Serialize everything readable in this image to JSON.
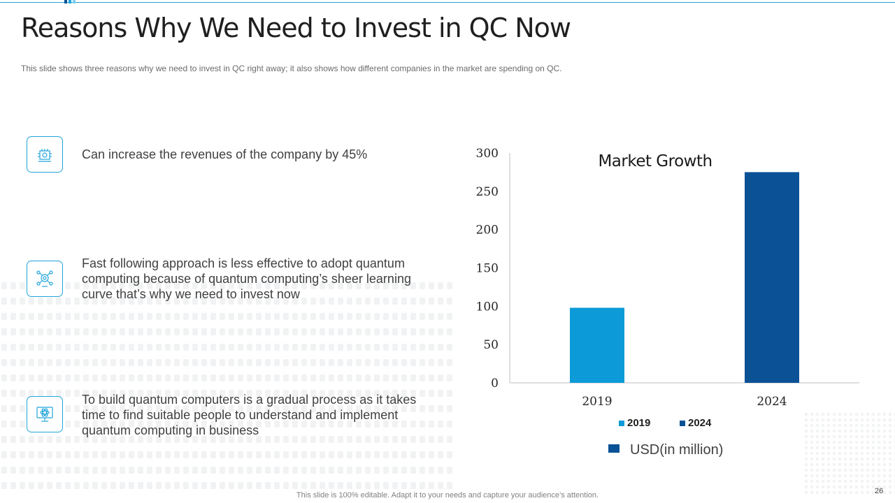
{
  "slide": {
    "title": "Reasons Why We Need to Invest in QC Now",
    "subtitle": "This slide shows three reasons why we need to invest in QC right away; it also shows how different companies in the market are spending on QC.",
    "footer": "This slide is 100% editable. Adapt it to your needs and capture your audience’s attention.",
    "page_number": "26"
  },
  "reasons": [
    {
      "icon": "factory-chip-icon",
      "text": "Can increase the revenues of the company by 45%"
    },
    {
      "icon": "network-gear-icon",
      "text": "Fast following approach is less effective to adopt quantum computing because of quantum computing’s sheer learning curve that’s why  we need to invest now"
    },
    {
      "icon": "computer-atom-icon",
      "text": "To build quantum computers is a gradual process as it takes time to find suitable people to understand and implement quantum computing in business"
    }
  ],
  "colors": {
    "accent": "#21a4d9",
    "bar_2019": "#0c9bd8",
    "bar_2024": "#0a5196"
  },
  "chart_data": {
    "type": "bar",
    "title": "Market Growth",
    "categories": [
      "2019",
      "2024"
    ],
    "values": [
      98,
      275
    ],
    "ylim": [
      0,
      300
    ],
    "yticks": [
      0,
      50,
      100,
      150,
      200,
      250,
      300
    ],
    "legend": [
      {
        "name": "2019",
        "color": "#0c9bd8"
      },
      {
        "name": "2024",
        "color": "#0a5196"
      }
    ],
    "unit_label": "USD(in million)",
    "xlabel": "",
    "ylabel": ""
  }
}
